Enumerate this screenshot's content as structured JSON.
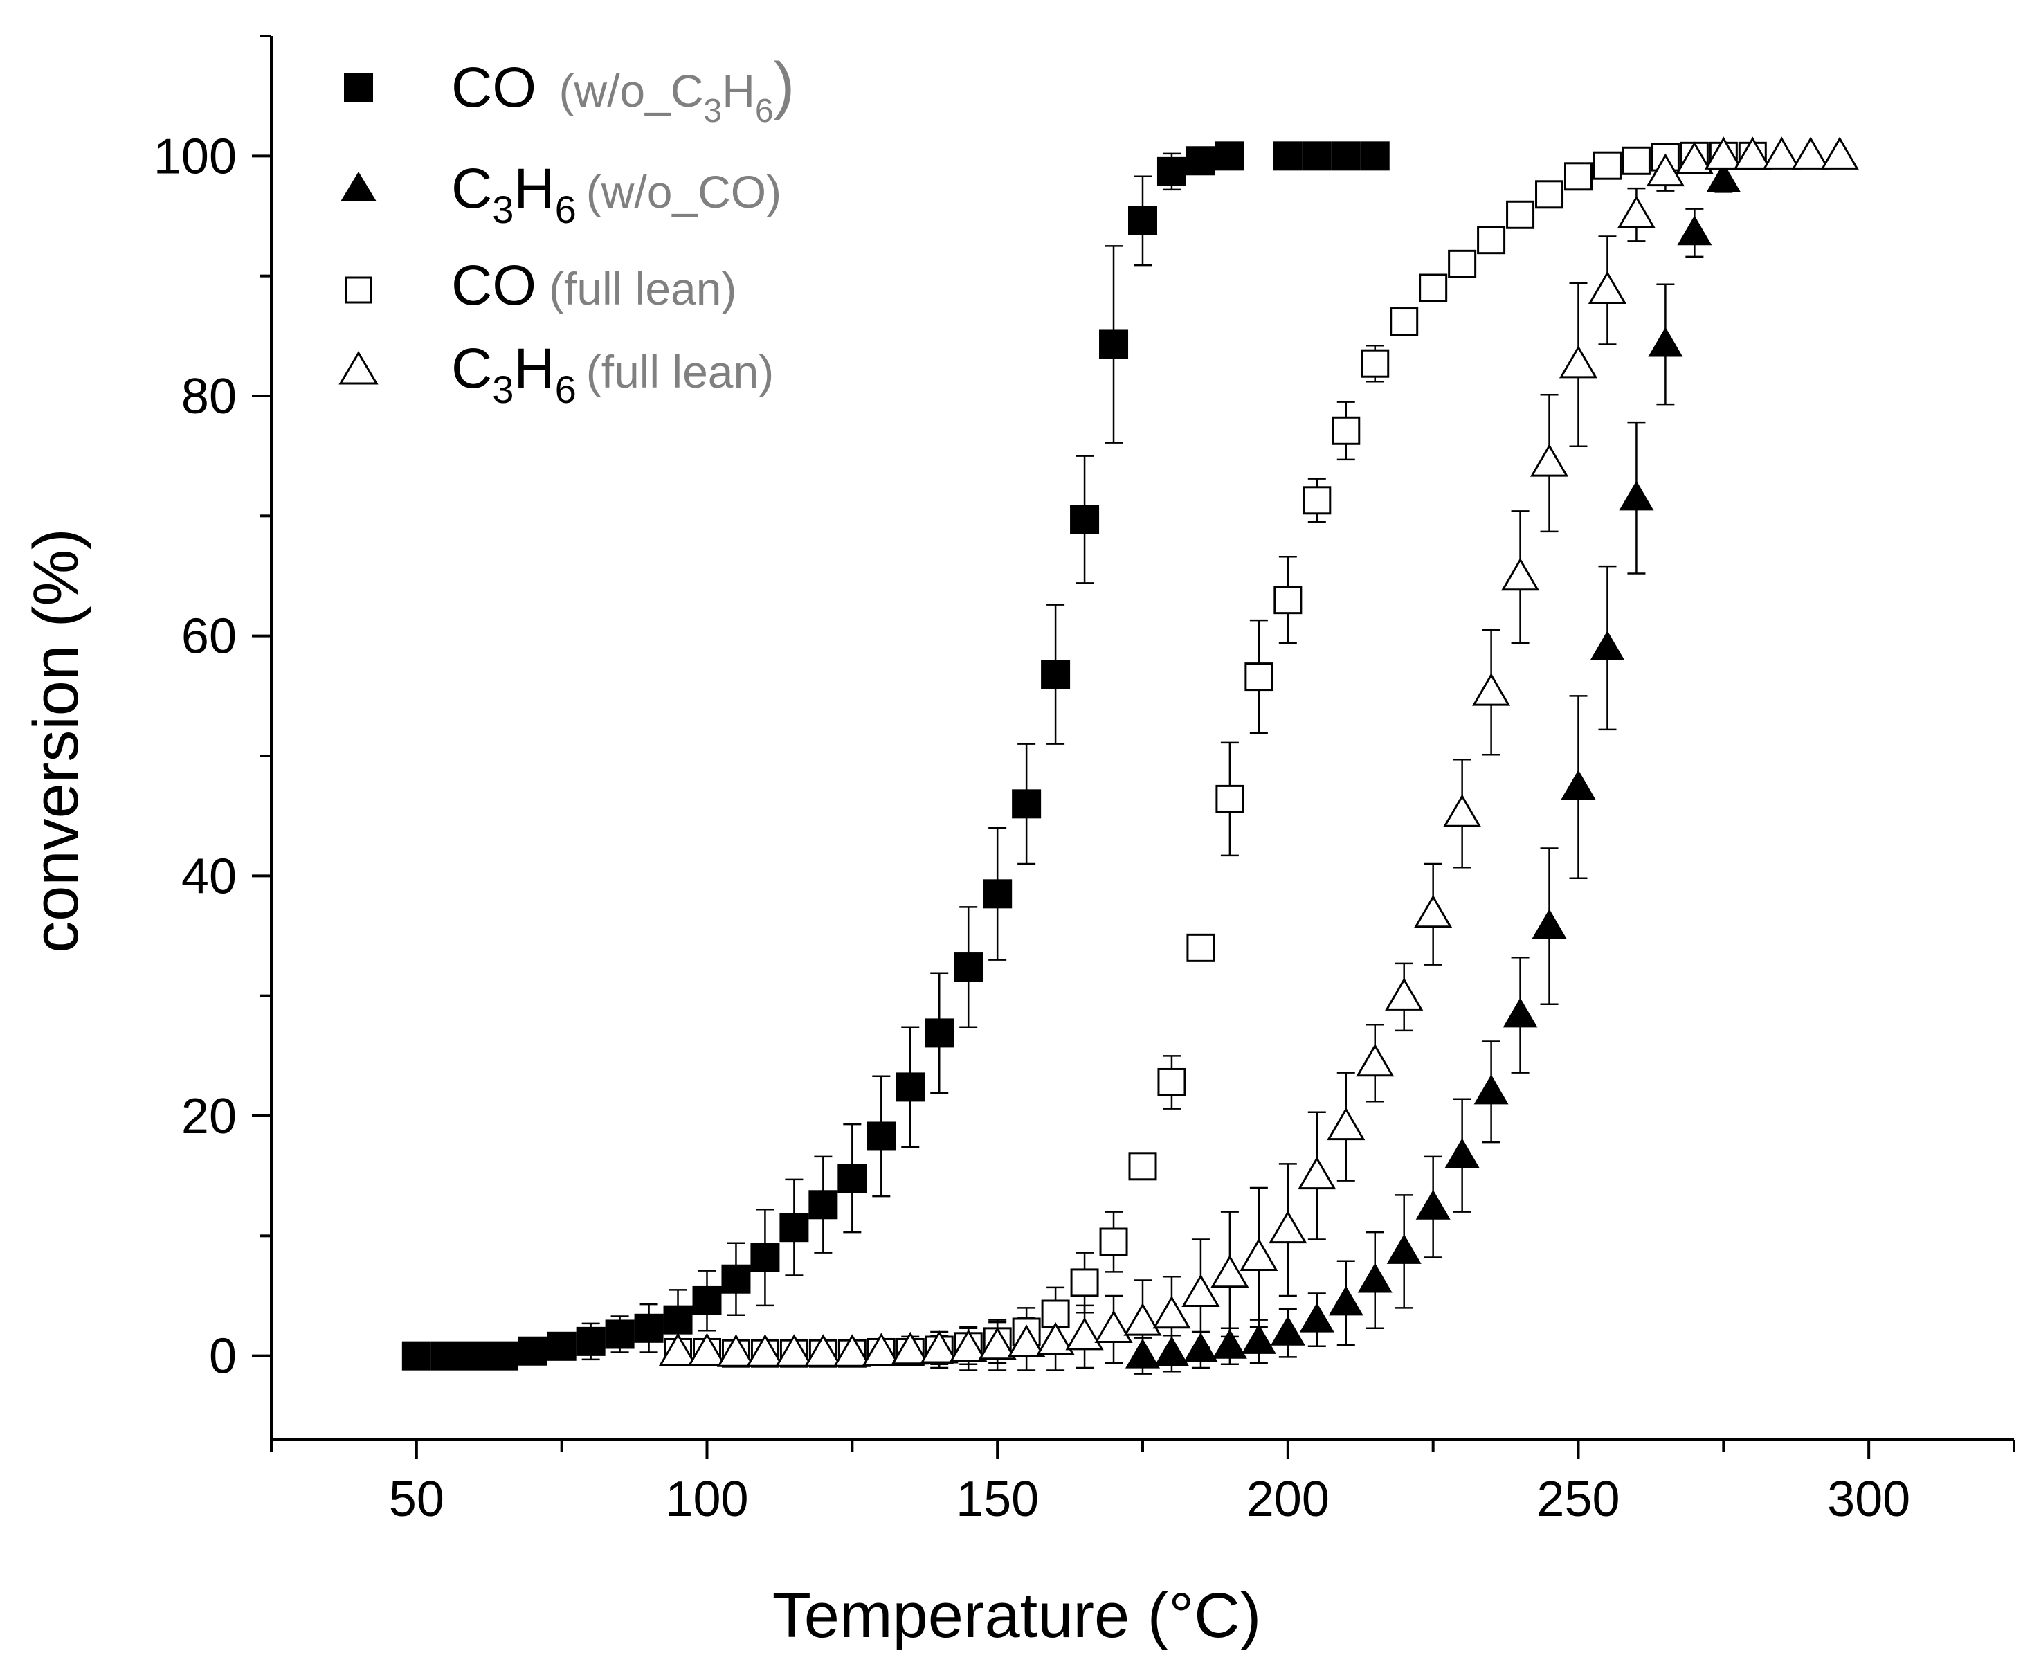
{
  "chart_data": {
    "type": "scatter",
    "title": "",
    "xlabel": "Temperature (°C)",
    "ylabel": "conversion (%)",
    "xlim": [
      25,
      325
    ],
    "ylim": [
      -7,
      110
    ],
    "xticks": [
      50,
      100,
      150,
      200,
      250,
      300
    ],
    "yticks": [
      0,
      20,
      40,
      60,
      80,
      100
    ],
    "grid": false,
    "legend_position": "top-left",
    "series": [
      {
        "name": "CO (w/o_C3H6)",
        "legend": {
          "main": "CO",
          "sub_prefix": "(w/o_C",
          "sub_idx1": "3",
          "sub_mid": "H",
          "sub_idx2": "6",
          "sub_suffix": ")"
        },
        "marker": "square-filled",
        "x": [
          50,
          55,
          60,
          65,
          70,
          75,
          80,
          85,
          90,
          95,
          100,
          105,
          110,
          115,
          120,
          125,
          130,
          135,
          140,
          145,
          150,
          155,
          160,
          165,
          170,
          175,
          180,
          185,
          190,
          200,
          205,
          210,
          215
        ],
        "y": [
          0,
          0,
          0,
          0,
          0.4,
          0.8,
          1.2,
          1.8,
          2.3,
          3,
          4.6,
          6.4,
          8.2,
          10.7,
          12.6,
          14.8,
          18.3,
          22.4,
          26.9,
          32.4,
          38.5,
          46,
          56.8,
          69.7,
          84.3,
          94.6,
          98.7,
          99.6,
          100,
          100,
          100,
          100,
          100
        ],
        "err": [
          0,
          0,
          0,
          0,
          0.5,
          1,
          1.5,
          1.5,
          2,
          2.5,
          2.5,
          3,
          4,
          4,
          4,
          4.5,
          5,
          5,
          5,
          5,
          5.5,
          5,
          5.8,
          5.3,
          8.2,
          3.7,
          1.5,
          0.6,
          0,
          0,
          0,
          0,
          0
        ]
      },
      {
        "name": "C3H6 (w/o_CO)",
        "legend": {
          "main": "C",
          "main_idx1": "3",
          "main_mid": "H",
          "main_idx2": "6",
          "sub": "(w/o_CO)"
        },
        "marker": "triangle-filled",
        "x": [
          175,
          180,
          185,
          190,
          195,
          200,
          205,
          210,
          215,
          220,
          225,
          230,
          235,
          240,
          245,
          250,
          255,
          260,
          265,
          270,
          275,
          290
        ],
        "y": [
          0,
          0.2,
          0.5,
          0.8,
          1.2,
          1.9,
          3,
          4.4,
          6.3,
          8.7,
          12.4,
          16.7,
          22,
          28.4,
          35.8,
          47.4,
          59,
          71.5,
          84.3,
          93.6,
          98,
          100
        ],
        "err": [
          1.5,
          1.5,
          1.5,
          1.5,
          1.8,
          2,
          2.2,
          3.5,
          4,
          4.7,
          4.2,
          4.7,
          4.2,
          4.8,
          6.5,
          7.6,
          6.8,
          6.3,
          5,
          2,
          1,
          0
        ]
      },
      {
        "name": "CO (full lean)",
        "legend": {
          "main": "CO",
          "sub": "(full lean)"
        },
        "marker": "square-open",
        "x": [
          95,
          100,
          105,
          110,
          115,
          120,
          125,
          130,
          135,
          140,
          145,
          150,
          155,
          160,
          165,
          170,
          175,
          180,
          185,
          190,
          195,
          200,
          205,
          210,
          215,
          220,
          225,
          230,
          235,
          240,
          245,
          250,
          255,
          260,
          265,
          270,
          275,
          280
        ],
        "y": [
          0.3,
          0.3,
          0.2,
          0.2,
          0.2,
          0.2,
          0.2,
          0.3,
          0.3,
          0.5,
          0.8,
          1.2,
          2,
          3.5,
          6.1,
          9.5,
          15.8,
          22.8,
          34,
          46.4,
          56.6,
          63,
          71.3,
          77.1,
          82.7,
          86.2,
          89,
          91,
          93,
          95.1,
          96.8,
          98.3,
          99.2,
          99.6,
          99.9,
          100,
          100,
          100
        ],
        "err": [
          0.5,
          0.5,
          0.5,
          0.5,
          0.5,
          0.5,
          0.5,
          0.8,
          1,
          1.2,
          1.5,
          1.8,
          2,
          2.2,
          2.5,
          2.5,
          0.8,
          2.2,
          1,
          4.7,
          4.7,
          3.6,
          1.8,
          2.4,
          1.5,
          0.8,
          0.8,
          0.8,
          0.8,
          0.8,
          0.8,
          0.5,
          0.5,
          0.5,
          0.3,
          0.3,
          0.3,
          0.3
        ]
      },
      {
        "name": "C3H6 (full lean)",
        "legend": {
          "main": "C",
          "main_idx1": "3",
          "main_mid": "H",
          "main_idx2": "6",
          "sub": "(full lean)"
        },
        "marker": "triangle-open",
        "x": [
          95,
          100,
          105,
          110,
          115,
          120,
          125,
          130,
          135,
          140,
          145,
          150,
          155,
          160,
          165,
          170,
          175,
          180,
          185,
          190,
          195,
          200,
          205,
          210,
          215,
          220,
          225,
          230,
          235,
          240,
          245,
          250,
          255,
          260,
          265,
          270,
          275,
          280,
          285,
          290,
          295
        ],
        "y": [
          0.3,
          0.3,
          0.2,
          0.2,
          0.2,
          0.2,
          0.2,
          0.3,
          0.4,
          0.5,
          0.6,
          0.8,
          1,
          1.2,
          1.6,
          2.2,
          2.8,
          3.4,
          5.2,
          6.8,
          8.2,
          10.5,
          15,
          19.1,
          24.4,
          29.9,
          36.8,
          45.2,
          55.3,
          64.9,
          74.4,
          82.6,
          88.8,
          95.1,
          98.6,
          99.6,
          100,
          100,
          100,
          100,
          100
        ],
        "err": [
          1,
          1,
          1,
          1,
          1,
          1,
          1,
          1,
          1.2,
          1.5,
          1.8,
          2,
          2.2,
          2.4,
          2.6,
          2.8,
          3.5,
          3.2,
          4.5,
          5.2,
          5.8,
          5.5,
          5.3,
          4.5,
          3.2,
          2.8,
          4.2,
          4.5,
          5.2,
          5.5,
          5.7,
          6.8,
          4.5,
          2.2,
          1.5,
          1,
          0.5,
          0.5,
          0.3,
          0.3,
          0
        ]
      }
    ]
  }
}
